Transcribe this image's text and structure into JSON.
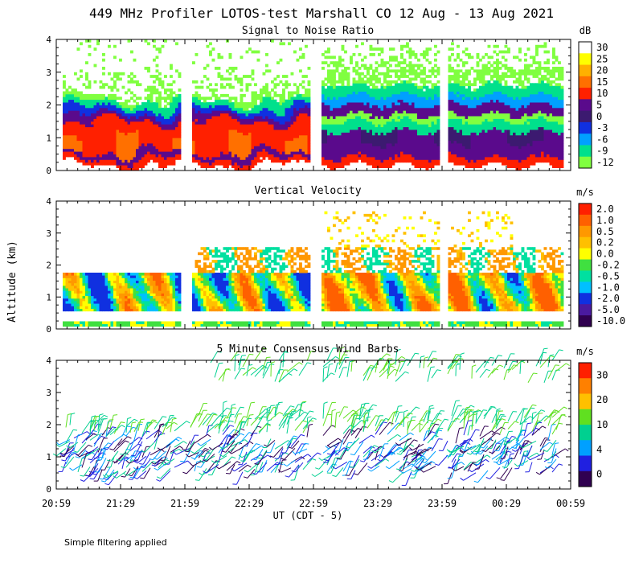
{
  "chart_data": {
    "type": "heatmap",
    "title": "449 MHz Profiler LOTOS-test Marshall CO 12 Aug - 13 Aug 2021",
    "ylabel": "Altitude (km)",
    "xlabel": "UT  (CDT - 5)",
    "x_tick_labels": [
      "20:59",
      "21:29",
      "21:59",
      "22:29",
      "22:59",
      "23:29",
      "23:59",
      "00:29",
      "00:59"
    ],
    "y_tick_labels": [
      "0",
      "1",
      "2",
      "3",
      "4"
    ],
    "ylim": [
      0,
      4
    ],
    "footnote": "Simple filtering applied",
    "panels": [
      {
        "title": "Signal to Noise Ratio",
        "type": "heatmap",
        "units": "dB",
        "colorbar_labels": [
          "30",
          "25",
          "20",
          "15",
          "10",
          "5",
          "0",
          "-3",
          "-6",
          "-9",
          "-12"
        ],
        "colorbar_colors": [
          "#ffffff",
          "#ffff00",
          "#ffb000",
          "#ff7000",
          "#ff2000",
          "#5a0a8c",
          "#3c1a70",
          "#1030e0",
          "#00a0ff",
          "#00e08c",
          "#80ff40"
        ],
        "data_gaps": [
          "21:59-22:02",
          "22:56-22:59",
          "23:59-00:02"
        ]
      },
      {
        "title": "Vertical Velocity",
        "type": "heatmap",
        "units": "m/s",
        "colorbar_labels": [
          "2.0",
          "1.0",
          "0.5",
          "0.2",
          "0.0",
          "-0.2",
          "-0.5",
          "-1.0",
          "-2.0",
          "-5.0",
          "-10.0"
        ],
        "colorbar_colors": [
          "#ff2000",
          "#ff6000",
          "#ff9800",
          "#ffc000",
          "#ffff00",
          "#40e040",
          "#00e0a0",
          "#00c0ff",
          "#1030e0",
          "#4a1aa0",
          "#300050"
        ]
      },
      {
        "title": "5 Minute Consensus Wind Barbs",
        "type": "barbs",
        "units": "m/s",
        "colorbar_labels": [
          "30",
          "20",
          "10",
          "4",
          "0"
        ],
        "colorbar_colors": [
          "#ff2000",
          "#ff8000",
          "#ffc000",
          "#60e020",
          "#00d090",
          "#00a0ff",
          "#2020e0",
          "#300050"
        ]
      }
    ]
  }
}
